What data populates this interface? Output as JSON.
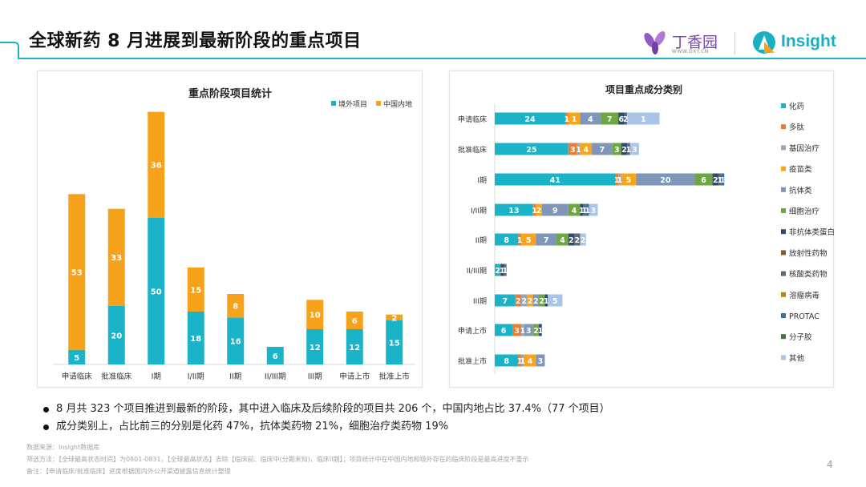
{
  "header": {
    "title": "全球新药 8 月进展到最新阶段的重点项目",
    "logo_dxy_name": "丁香园",
    "logo_dxy_url": "WWW.DXY.CN",
    "logo_insight_name": "Insight"
  },
  "colors": {
    "accent": "#1bb3c8",
    "overseas": "#1bb3c8",
    "china": "#f7a21b"
  },
  "chart_data": [
    {
      "type": "bar",
      "stacked": true,
      "title": "重点阶段项目统计",
      "legend_position": "top-right",
      "categories": [
        "申请临床",
        "批准临床",
        "I期",
        "I/II期",
        "II期",
        "II/III期",
        "III期",
        "申请上市",
        "批准上市"
      ],
      "series": [
        {
          "name": "境外项目",
          "color": "#1bb3c8",
          "values": [
            5,
            20,
            50,
            18,
            16,
            6,
            12,
            12,
            15
          ]
        },
        {
          "name": "中国内地",
          "color": "#f7a21b",
          "values": [
            53,
            33,
            36,
            15,
            8,
            null,
            10,
            6,
            2
          ]
        }
      ],
      "ylim": [
        0,
        90
      ],
      "grid": false
    },
    {
      "type": "bar",
      "orientation": "horizontal",
      "stacked": true,
      "title": "项目重点成分类别",
      "legend_position": "right",
      "categories": [
        "申请临床",
        "批准临床",
        "I期",
        "I/II期",
        "II期",
        "II/III期",
        "III期",
        "申请上市",
        "批准上市"
      ],
      "series": [
        {
          "name": "化药",
          "color": "#1bb3c8",
          "values": [
            24,
            25,
            41,
            13,
            8,
            2,
            7,
            6,
            8
          ]
        },
        {
          "name": "多肽",
          "color": "#ee7b30",
          "values": [
            1,
            3,
            1,
            1,
            1,
            0,
            2,
            3,
            1
          ]
        },
        {
          "name": "基因治疗",
          "color": "#9aa7b6",
          "values": [
            0,
            1,
            1,
            0,
            0,
            0,
            2,
            1,
            1
          ]
        },
        {
          "name": "疫苗类",
          "color": "#f8a51c",
          "values": [
            4,
            4,
            5,
            2,
            5,
            0,
            2,
            0,
            4
          ]
        },
        {
          "name": "抗体类",
          "color": "#7f96b8",
          "values": [
            7,
            7,
            20,
            9,
            7,
            0,
            2,
            3,
            3
          ]
        },
        {
          "name": "细胞治疗",
          "color": "#6fa644",
          "values": [
            6,
            3,
            6,
            4,
            4,
            0,
            2,
            2,
            0
          ]
        },
        {
          "name": "非抗体类蛋白",
          "color": "#2e4a6e",
          "values": [
            2,
            2,
            2,
            1,
            2,
            1,
            1,
            1,
            0
          ]
        },
        {
          "name": "放射性药物",
          "color": "#8b5a2b",
          "values": [
            0,
            0,
            0,
            0,
            0,
            0,
            0,
            0,
            0
          ]
        },
        {
          "name": "核酸类药物",
          "color": "#5b6b7a",
          "values": [
            1,
            1,
            1,
            1,
            2,
            1,
            0,
            0,
            0
          ]
        },
        {
          "name": "溶瘤病毒",
          "color": "#b8860b",
          "values": [
            0,
            0,
            0,
            0,
            0,
            0,
            0,
            0,
            0
          ]
        },
        {
          "name": "PROTAC",
          "color": "#3b6fa0",
          "values": [
            0,
            0,
            1,
            1,
            0,
            0,
            0,
            0,
            0
          ]
        },
        {
          "name": "分子胶",
          "color": "#3f7a3a",
          "values": [
            0,
            0,
            0,
            0,
            0,
            0,
            0,
            0,
            0
          ]
        },
        {
          "name": "其他",
          "color": "#a9c4e6",
          "values": [
            11,
            3,
            0,
            3,
            2,
            0,
            5,
            0,
            0
          ]
        }
      ],
      "labels": [
        [
          "24",
          "1",
          "1",
          "4",
          "7",
          "6",
          "2",
          "1",
          "11"
        ],
        [
          "25",
          "3",
          "1",
          "4",
          "7",
          "3",
          "2",
          "1",
          "3"
        ],
        [
          "41",
          "1",
          "1",
          "5",
          "20",
          "6",
          "2",
          "1",
          "1"
        ],
        [
          "13",
          "1",
          "2",
          "9",
          "4",
          "1",
          "1",
          "1",
          "3"
        ],
        [
          "8",
          "1",
          "5",
          "7",
          "4",
          "2",
          "2",
          "2"
        ],
        [
          "2",
          "1",
          "1"
        ],
        [
          "7",
          "2",
          "2",
          "2",
          "2",
          "2",
          "1",
          "5"
        ],
        [
          "6",
          "3",
          "1",
          "3",
          "2",
          "1"
        ],
        [
          "8",
          "1",
          "1",
          "4",
          "3"
        ]
      ],
      "xlim": [
        0,
        80
      ],
      "grid": false
    }
  ],
  "bullets": [
    "8 月共 323 个项目推进到最新的阶段，其中进入临床及后续阶段的项目共 206 个，中国内地占比 37.4%（77 个项目）",
    "成分类别上，占比前三的分别是化药 47%，抗体类药物 21%，细胞治疗类药物 19%"
  ],
  "footnotes": [
    "数据来源：Insight数据库",
    "筛选方法：【全球最高状态时间】为0801-0831，【全球最高状态】去除【临床前、临床中(分期未知)、临床II期】；项目统计中在中国内地和境外存在的临床阶段是最高进度不重示",
    "备注：【申请临床/批准临床】进度根据国内外公开渠道披露信息统计整理"
  ],
  "page_number": "4"
}
